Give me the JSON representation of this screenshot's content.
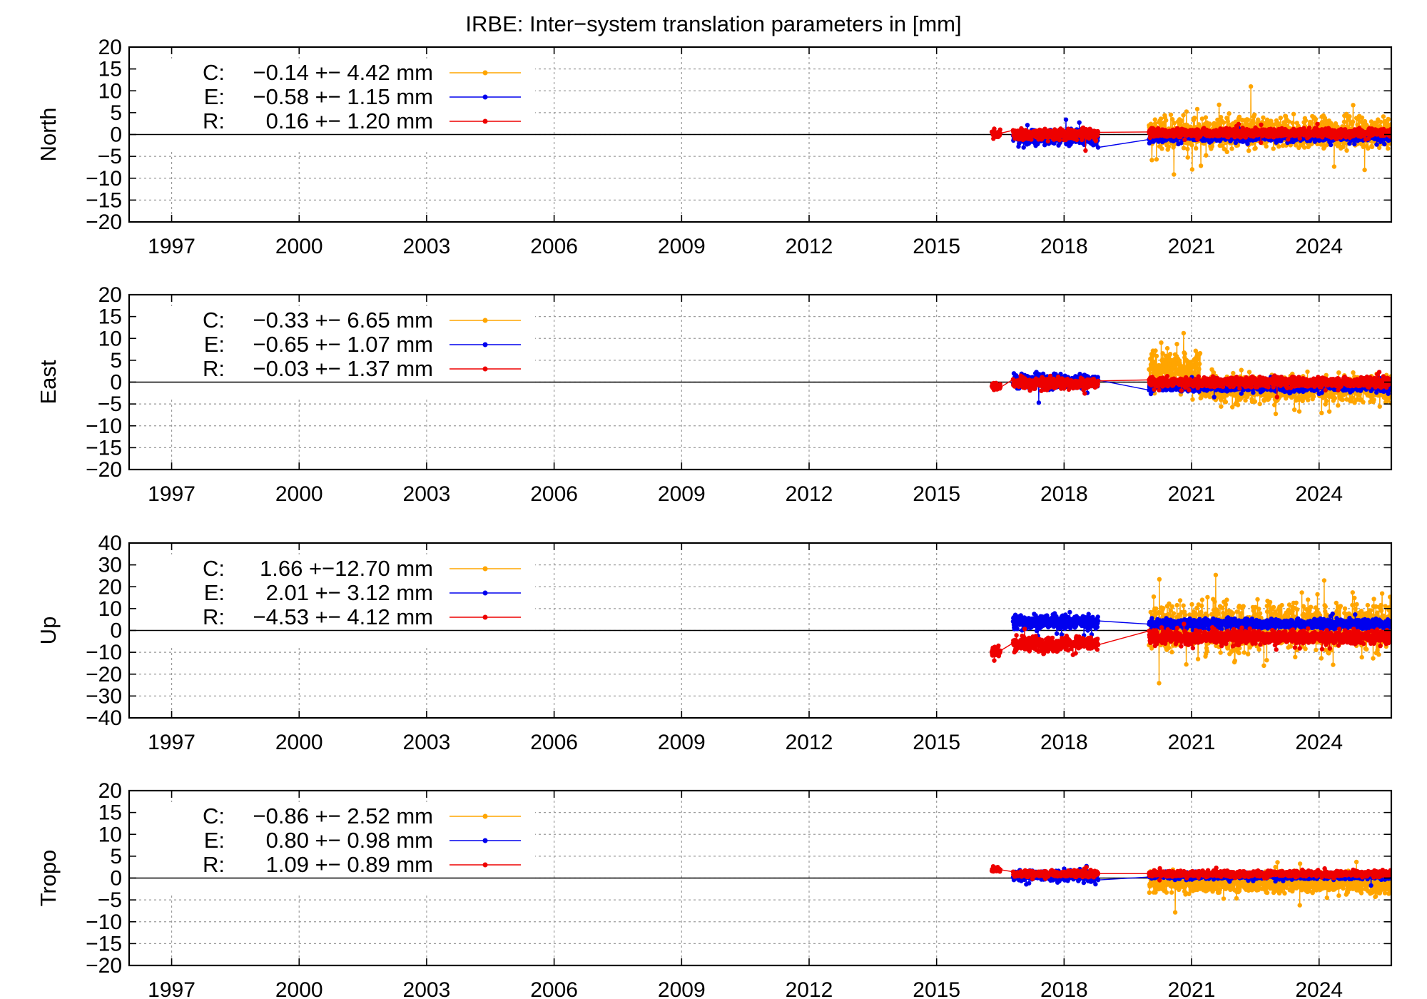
{
  "chart_data": {
    "type": "scatter",
    "title": "IRBE: Inter−system translation parameters in [mm]",
    "x_tick_labels": [
      "1997",
      "2000",
      "2003",
      "2006",
      "2009",
      "2012",
      "2015",
      "2018",
      "2021",
      "2024"
    ],
    "x_range": [
      1996.0,
      2025.7
    ],
    "grid": true,
    "legend_placement": "top-left",
    "series_colors": {
      "C": "#FFA500",
      "E": "#0000EE",
      "R": "#EE0000"
    },
    "panels": [
      {
        "ylabel": "North",
        "ylim": [
          -20,
          20
        ],
        "yticks": [
          20,
          15,
          10,
          5,
          0,
          -5,
          -10,
          -15,
          -20
        ],
        "legend": [
          {
            "key": "C",
            "label": "C:",
            "stat": "−0.14 +− 4.42 mm"
          },
          {
            "key": "E",
            "label": "E:",
            "stat": "−0.58 +− 1.15 mm"
          },
          {
            "key": "R",
            "label": "R:",
            "stat": "0.16 +− 1.20 mm"
          }
        ],
        "series": [
          {
            "key": "C",
            "segments": [
              {
                "x_start": 2020.0,
                "x_end": 2025.7,
                "mean": 0.3,
                "spread": 4.5
              }
            ]
          },
          {
            "key": "E",
            "segments": [
              {
                "x_start": 2016.8,
                "x_end": 2018.8,
                "mean": -0.6,
                "spread": 2.0
              },
              {
                "x_start": 2020.0,
                "x_end": 2025.7,
                "mean": -0.5,
                "spread": 1.3
              }
            ]
          },
          {
            "key": "R",
            "segments": [
              {
                "x_start": 2016.3,
                "x_end": 2016.5,
                "mean": 0.2,
                "spread": 1.2
              },
              {
                "x_start": 2016.8,
                "x_end": 2018.8,
                "mean": 0.0,
                "spread": 1.5
              },
              {
                "x_start": 2020.0,
                "x_end": 2025.7,
                "mean": 0.4,
                "spread": 1.2
              }
            ]
          }
        ]
      },
      {
        "ylabel": "East",
        "ylim": [
          -20,
          20
        ],
        "yticks": [
          20,
          15,
          10,
          5,
          0,
          -5,
          -10,
          -15,
          -20
        ],
        "legend": [
          {
            "key": "C",
            "label": "C:",
            "stat": "−0.33 +− 6.65 mm"
          },
          {
            "key": "E",
            "label": "E:",
            "stat": "−0.65 +− 1.07 mm"
          },
          {
            "key": "R",
            "label": "R:",
            "stat": "−0.03 +− 1.37 mm"
          }
        ],
        "series": [
          {
            "key": "C",
            "segments": [
              {
                "x_start": 2020.0,
                "x_end": 2021.2,
                "mean": 3.0,
                "spread": 5.5
              },
              {
                "x_start": 2021.2,
                "x_end": 2025.7,
                "mean": -1.5,
                "spread": 4.0
              }
            ]
          },
          {
            "key": "E",
            "segments": [
              {
                "x_start": 2016.8,
                "x_end": 2018.8,
                "mean": 0.2,
                "spread": 2.0
              },
              {
                "x_start": 2020.0,
                "x_end": 2025.7,
                "mean": -1.0,
                "spread": 1.3
              }
            ]
          },
          {
            "key": "R",
            "segments": [
              {
                "x_start": 2016.3,
                "x_end": 2016.5,
                "mean": -1.0,
                "spread": 1.2
              },
              {
                "x_start": 2016.8,
                "x_end": 2018.8,
                "mean": -0.3,
                "spread": 1.6
              },
              {
                "x_start": 2020.0,
                "x_end": 2025.7,
                "mean": 0.0,
                "spread": 1.4
              }
            ]
          }
        ]
      },
      {
        "ylabel": "Up",
        "ylim": [
          -40,
          40
        ],
        "yticks": [
          40,
          30,
          20,
          10,
          0,
          -10,
          -20,
          -30,
          -40
        ],
        "legend": [
          {
            "key": "C",
            "label": "C:",
            "stat": "1.66 +−12.70 mm"
          },
          {
            "key": "E",
            "label": "E:",
            "stat": "2.01 +− 3.12 mm"
          },
          {
            "key": "R",
            "label": "R:",
            "stat": "−4.53 +− 4.12 mm"
          }
        ],
        "series": [
          {
            "key": "C",
            "segments": [
              {
                "x_start": 2020.0,
                "x_end": 2025.7,
                "mean": 2.0,
                "spread": 14.0
              }
            ]
          },
          {
            "key": "E",
            "segments": [
              {
                "x_start": 2016.8,
                "x_end": 2018.8,
                "mean": 4.0,
                "spread": 4.5
              },
              {
                "x_start": 2020.0,
                "x_end": 2025.7,
                "mean": 3.0,
                "spread": 2.8
              }
            ]
          },
          {
            "key": "R",
            "segments": [
              {
                "x_start": 2016.3,
                "x_end": 2016.5,
                "mean": -10.0,
                "spread": 3.5
              },
              {
                "x_start": 2016.8,
                "x_end": 2018.8,
                "mean": -6.0,
                "spread": 4.0
              },
              {
                "x_start": 2020.0,
                "x_end": 2025.7,
                "mean": -3.0,
                "spread": 4.0
              }
            ]
          }
        ]
      },
      {
        "ylabel": "Tropo",
        "ylim": [
          -20,
          20
        ],
        "yticks": [
          20,
          15,
          10,
          5,
          0,
          -5,
          -10,
          -15,
          -20
        ],
        "legend": [
          {
            "key": "C",
            "label": "C:",
            "stat": "−0.86 +− 2.52 mm"
          },
          {
            "key": "E",
            "label": "E:",
            "stat": "0.80 +− 0.98 mm"
          },
          {
            "key": "R",
            "label": "R:",
            "stat": "1.09 +− 0.89 mm"
          }
        ],
        "series": [
          {
            "key": "C",
            "segments": [
              {
                "x_start": 2020.0,
                "x_end": 2025.7,
                "mean": -1.0,
                "spread": 2.8
              }
            ]
          },
          {
            "key": "E",
            "segments": [
              {
                "x_start": 2016.8,
                "x_end": 2018.8,
                "mean": 0.5,
                "spread": 1.5
              },
              {
                "x_start": 2020.0,
                "x_end": 2025.7,
                "mean": 0.5,
                "spread": 0.9
              }
            ]
          },
          {
            "key": "R",
            "segments": [
              {
                "x_start": 2016.3,
                "x_end": 2016.5,
                "mean": 2.0,
                "spread": 0.8
              },
              {
                "x_start": 2016.8,
                "x_end": 2018.8,
                "mean": 1.0,
                "spread": 0.9
              },
              {
                "x_start": 2020.0,
                "x_end": 2025.7,
                "mean": 1.0,
                "spread": 0.8
              }
            ]
          }
        ]
      }
    ]
  }
}
